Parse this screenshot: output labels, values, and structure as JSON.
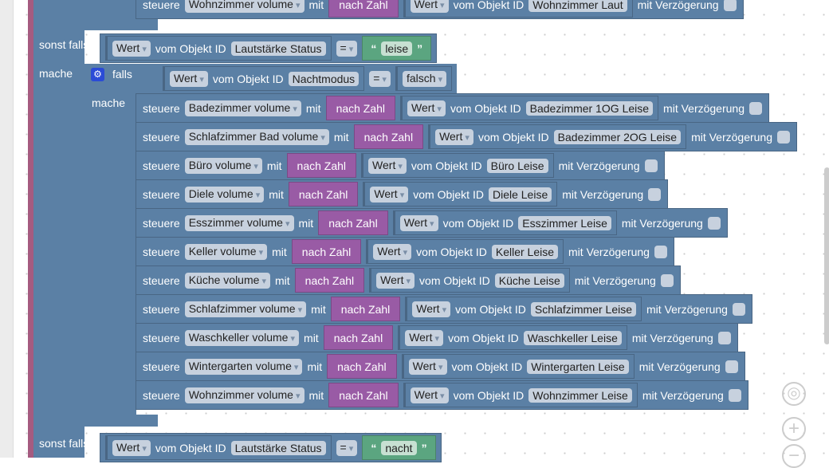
{
  "top_row": {
    "steuere": "steuere",
    "name": "Wohnzimmer volume",
    "mit": "mit",
    "nach_zahl": "nach Zahl",
    "wert": "Wert",
    "vom": "vom Objekt ID",
    "object": "Wohnzimmer Laut",
    "delay": "mit Verzögerung"
  },
  "sonst_falls_1": {
    "label": "sonst falls",
    "wert": "Wert",
    "vom": "vom Objekt ID",
    "object": "Lautstärke Status",
    "op": "=",
    "value": "leise",
    "quote_open": "“",
    "quote_close": "”"
  },
  "mache_label": "mache",
  "inner_if": {
    "falls": "falls",
    "wert": "Wert",
    "vom": "vom Objekt ID",
    "object": "Nachtmodus",
    "op": "=",
    "value": "falsch",
    "mache": "mache"
  },
  "rows": [
    {
      "name": "Badezimmer volume",
      "object": "Badezimmer 1OG Leise"
    },
    {
      "name": "Schlafzimmer Bad volume",
      "object": "Badezimmer 2OG Leise"
    },
    {
      "name": "Büro volume",
      "object": "Büro Leise"
    },
    {
      "name": "Diele volume",
      "object": "Diele Leise"
    },
    {
      "name": "Esszimmer volume",
      "object": "Esszimmer Leise"
    },
    {
      "name": "Keller volume",
      "object": "Keller Leise"
    },
    {
      "name": "Küche volume",
      "object": "Küche Leise"
    },
    {
      "name": "Schlafzimmer volume",
      "object": "Schlafzimmer Leise"
    },
    {
      "name": "Waschkeller volume",
      "object": "Waschkeller Leise"
    },
    {
      "name": "Wintergarten volume",
      "object": "Wintergarten Leise"
    },
    {
      "name": "Wohnzimmer volume",
      "object": "Wohnzimmer Leise"
    }
  ],
  "row_labels": {
    "steuere": "steuere",
    "mit": "mit",
    "nach_zahl": "nach Zahl",
    "wert": "Wert",
    "vom": "vom Objekt ID",
    "delay": "mit Verzögerung"
  },
  "sonst_falls_2": {
    "label": "sonst falls",
    "wert": "Wert",
    "vom": "vom Objekt ID",
    "object": "Lautstärke Status",
    "op": "=",
    "value": "nacht",
    "quote_open": "“",
    "quote_close": "”"
  },
  "controls": {
    "center": "◎",
    "zoom_in": "+",
    "zoom_out": "−"
  },
  "colors": {
    "block": "#5b80a5",
    "math": "#995ba5",
    "text": "#5ba580",
    "outer": "#a55b80"
  }
}
